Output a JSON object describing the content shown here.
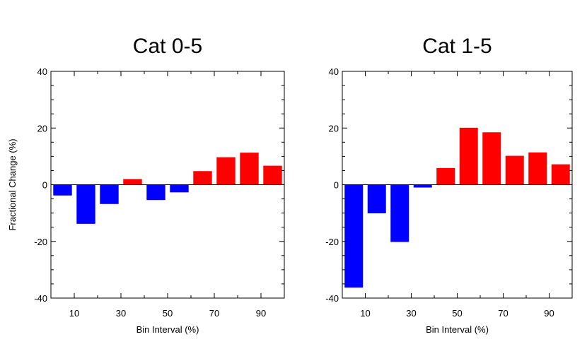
{
  "chart_data": [
    {
      "type": "bar",
      "title": "Cat 0-5",
      "xlabel": "Bin Interval (%)",
      "ylabel": "Fractional Change (%)",
      "x": [
        5,
        15,
        25,
        35,
        45,
        55,
        65,
        75,
        85,
        95
      ],
      "values": [
        -3.8,
        -13.8,
        -6.8,
        2.0,
        -5.4,
        -2.7,
        4.8,
        9.7,
        11.3,
        6.7
      ],
      "xlim": [
        0,
        100
      ],
      "ylim": [
        -40,
        40
      ],
      "xticks": [
        "10",
        "30",
        "50",
        "70",
        "90"
      ],
      "yticks": [
        "-40",
        "-20",
        "0",
        "20",
        "40"
      ],
      "positive_color": "#ff0000",
      "negative_color": "#0000ff",
      "grid": false
    },
    {
      "type": "bar",
      "title": "Cat 1-5",
      "xlabel": "Bin Interval (%)",
      "ylabel": "",
      "x": [
        5,
        15,
        25,
        35,
        45,
        55,
        65,
        75,
        85,
        95
      ],
      "values": [
        -36.3,
        -10.1,
        -20.2,
        -1.0,
        5.9,
        20.1,
        18.5,
        10.2,
        11.4,
        7.2
      ],
      "xlim": [
        0,
        100
      ],
      "ylim": [
        -40,
        40
      ],
      "xticks": [
        "10",
        "30",
        "50",
        "70",
        "90"
      ],
      "yticks": [
        "-40",
        "-20",
        "0",
        "20",
        "40"
      ],
      "positive_color": "#ff0000",
      "negative_color": "#0000ff",
      "grid": false
    }
  ]
}
